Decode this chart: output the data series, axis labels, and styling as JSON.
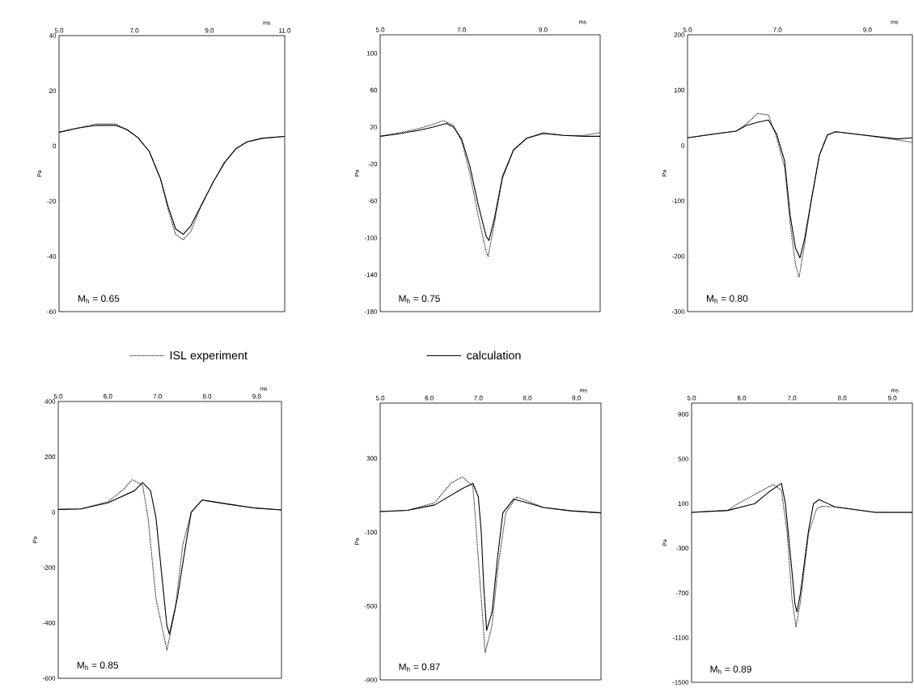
{
  "chart_data": [
    {
      "type": "line",
      "xlabel": "ms",
      "ylabel": "Pa",
      "xlim": [
        5,
        11
      ],
      "ylim": [
        -60,
        40
      ],
      "legend": "bottom",
      "xticks": [
        {
          "value": 5,
          "label": "5.0"
        },
        {
          "value": 7,
          "label": "7.0"
        },
        {
          "value": 9,
          "label": "9.0"
        },
        {
          "value": 11,
          "label": "11.0"
        }
      ],
      "yticks": [
        40,
        20,
        0,
        -20,
        -40,
        -60
      ],
      "annotations": [
        "M$_{h}$ = 0.65"
      ],
      "series": [
        {
          "name": "ISL experiment",
          "color": "#000000",
          "line_style": "dotted",
          "x": [
            5,
            5.5,
            6,
            6.5,
            6.8,
            7.1,
            7.4,
            7.7,
            7.9,
            8.1,
            8.3,
            8.5,
            8.8,
            9.1,
            9.4,
            9.7,
            10,
            10.4,
            11
          ],
          "values": [
            5,
            6.5,
            8,
            8,
            6,
            3,
            -2,
            -12,
            -23,
            -32,
            -34,
            -31,
            -21,
            -13,
            -6,
            -1,
            1.5,
            2.8,
            3.5
          ]
        },
        {
          "name": "calculation",
          "color": "#000000",
          "line_style": "solid",
          "x": [
            5,
            5.5,
            6,
            6.5,
            6.8,
            7.1,
            7.4,
            7.7,
            7.9,
            8.1,
            8.3,
            8.5,
            8.8,
            9.1,
            9.4,
            9.7,
            10,
            10.4,
            11
          ],
          "values": [
            5,
            6.5,
            7.5,
            7.5,
            6,
            3,
            -2,
            -12,
            -22,
            -30,
            -32,
            -29,
            -21,
            -13,
            -6,
            -1,
            1.5,
            2.8,
            3.5
          ]
        }
      ]
    },
    {
      "type": "line",
      "xlabel": "ms",
      "ylabel": "Pa",
      "xlim": [
        5,
        10.4
      ],
      "ylim": [
        -180,
        120
      ],
      "xticks": [
        {
          "value": 5,
          "label": "5.0"
        },
        {
          "value": 7,
          "label": "7.0"
        },
        {
          "value": 9,
          "label": "9.0"
        }
      ],
      "yticks": [
        100,
        60,
        20,
        -20,
        -60,
        -100,
        -140,
        -180
      ],
      "annotations": [
        "M$_{h}$ = 0.75"
      ],
      "series": [
        {
          "color": "#000000",
          "line_style": "dotted",
          "x": [
            5,
            5.5,
            6,
            6.3,
            6.55,
            6.8,
            7.0,
            7.2,
            7.4,
            7.6,
            7.65,
            7.8,
            8.0,
            8.27,
            8.6,
            9.0,
            9.5,
            10,
            10.4
          ],
          "values": [
            10,
            14,
            19,
            23,
            27,
            22,
            5,
            -30,
            -75,
            -115,
            -120,
            -85,
            -36,
            -5,
            8,
            14,
            11,
            11,
            14
          ]
        },
        {
          "color": "#000000",
          "line_style": "solid",
          "x": [
            5,
            5.5,
            6,
            6.3,
            6.63,
            6.8,
            7.0,
            7.2,
            7.4,
            7.6,
            7.67,
            7.8,
            8.0,
            8.27,
            8.6,
            9.0,
            9.5,
            10,
            10.4
          ],
          "values": [
            10,
            13,
            17,
            20,
            24,
            20,
            7,
            -22,
            -63,
            -98,
            -103,
            -80,
            -34,
            -5,
            8,
            13,
            11,
            10,
            10
          ]
        }
      ]
    },
    {
      "type": "line",
      "xlabel": "ms",
      "ylabel": "Pa",
      "xlim": [
        5,
        10
      ],
      "ylim": [
        -300,
        200
      ],
      "xticks": [
        {
          "value": 5,
          "label": "5.0"
        },
        {
          "value": 7,
          "label": "7.0"
        },
        {
          "value": 9,
          "label": "9.0"
        }
      ],
      "yticks": [
        200,
        100,
        0,
        -100,
        -200,
        -300
      ],
      "annotations": [
        "M$_{h}$ = 0.80"
      ],
      "series": [
        {
          "color": "#000000",
          "line_style": "dotted",
          "x": [
            5,
            5.6,
            6.08,
            6.3,
            6.56,
            6.8,
            6.98,
            7.16,
            7.28,
            7.4,
            7.48,
            7.6,
            7.75,
            7.93,
            8.11,
            8.29,
            8.9,
            9.67,
            10
          ],
          "values": [
            14,
            21,
            26,
            38,
            58,
            55,
            15,
            -40,
            -140,
            -215,
            -238,
            -180,
            -100,
            -18,
            19,
            25,
            19,
            10,
            6
          ]
        },
        {
          "color": "#000000",
          "line_style": "solid",
          "x": [
            5,
            5.6,
            6.08,
            6.3,
            6.56,
            6.8,
            6.98,
            7.16,
            7.28,
            7.4,
            7.5,
            7.6,
            7.75,
            7.93,
            8.11,
            8.29,
            8.9,
            9.67,
            10
          ],
          "values": [
            14,
            21,
            26,
            36,
            42,
            46,
            21,
            -28,
            -125,
            -185,
            -203,
            -170,
            -100,
            -18,
            19,
            25,
            19,
            12,
            14
          ]
        }
      ]
    },
    {
      "type": "line",
      "xlabel": "ms",
      "ylabel": "Pa",
      "xlim": [
        5,
        9.5
      ],
      "ylim": [
        -600,
        400
      ],
      "xticks": [
        {
          "value": 5,
          "label": "5.0"
        },
        {
          "value": 6,
          "label": "6.0"
        },
        {
          "value": 7,
          "label": "7.0"
        },
        {
          "value": 8,
          "label": "8.0"
        },
        {
          "value": 9,
          "label": "9.0"
        }
      ],
      "yticks": [
        400,
        200,
        0,
        -200,
        -400,
        -600
      ],
      "annotations": [
        "M$_{h}$ = 0.85"
      ],
      "series": [
        {
          "color": "#000000",
          "line_style": "dotted",
          "x": [
            5,
            5.46,
            6.0,
            6.3,
            6.49,
            6.7,
            6.81,
            6.97,
            7.19,
            7.35,
            7.51,
            7.68,
            7.9,
            8.43,
            8.97,
            9.5
          ],
          "values": [
            10,
            12,
            38,
            80,
            117,
            98,
            -20,
            -312,
            -498,
            -361,
            -117,
            0,
            44,
            29,
            15,
            8
          ]
        },
        {
          "color": "#000000",
          "line_style": "solid",
          "x": [
            5,
            5.46,
            6.0,
            6.54,
            6.7,
            6.86,
            6.97,
            7.08,
            7.19,
            7.24,
            7.4,
            7.57,
            7.68,
            7.9,
            8.43,
            8.97,
            9.5
          ],
          "values": [
            10,
            12,
            34,
            78,
            107,
            78,
            -20,
            -215,
            -410,
            -440,
            -312,
            -117,
            0,
            44,
            29,
            15,
            8
          ]
        }
      ]
    },
    {
      "type": "line",
      "xlabel": "ms",
      "ylabel": "Pa",
      "xlim": [
        5,
        9.5
      ],
      "ylim": [
        -900,
        600
      ],
      "xticks": [
        {
          "value": 5,
          "label": "5.0"
        },
        {
          "value": 6,
          "label": "6.0"
        },
        {
          "value": 7,
          "label": "7.0"
        },
        {
          "value": 8,
          "label": "8.0"
        },
        {
          "value": 9,
          "label": "9.0"
        }
      ],
      "yticks": [
        300,
        -100,
        -500,
        -900
      ],
      "annotations": [
        "M$_{h}$ = 0.87"
      ],
      "series": [
        {
          "color": "#000000",
          "line_style": "dotted",
          "x": [
            5,
            5.56,
            6.11,
            6.44,
            6.67,
            6.89,
            6.94,
            7.06,
            7.14,
            7.28,
            7.39,
            7.56,
            7.78,
            8.33,
            8.89,
            9.5
          ],
          "values": [
            12,
            19,
            60,
            165,
            201,
            150,
            -24,
            -460,
            -751,
            -606,
            -315,
            5,
            92,
            34,
            16,
            5
          ]
        },
        {
          "color": "#000000",
          "line_style": "solid",
          "x": [
            5,
            5.56,
            6.11,
            6.67,
            6.89,
            7.0,
            7.06,
            7.11,
            7.17,
            7.28,
            7.39,
            7.5,
            7.72,
            8.33,
            8.89,
            9.5
          ],
          "values": [
            12,
            19,
            48,
            136,
            165,
            92,
            -97,
            -388,
            -632,
            -533,
            -243,
            5,
            80,
            34,
            16,
            5
          ]
        }
      ]
    },
    {
      "type": "line",
      "xlabel": "ms",
      "ylabel": "Pa",
      "xlim": [
        5,
        9.4
      ],
      "ylim": [
        -1500,
        1000
      ],
      "xticks": [
        {
          "value": 5,
          "label": "5.0"
        },
        {
          "value": 6,
          "label": "6.0"
        },
        {
          "value": 7,
          "label": "7.0"
        },
        {
          "value": 8,
          "label": "8.0"
        },
        {
          "value": 9,
          "label": "9.0"
        }
      ],
      "yticks": [
        900,
        500,
        100,
        -300,
        -700,
        -1100,
        -1500
      ],
      "annotations": [
        "M$_{h}$ = 0.89"
      ],
      "series": [
        {
          "color": "#000000",
          "line_style": "dotted",
          "x": [
            5,
            5.72,
            5.88,
            6.52,
            6.63,
            6.79,
            6.9,
            7.0,
            7.08,
            7.17,
            7.33,
            7.49,
            7.59,
            7.86,
            8.66,
            9.4
          ],
          "values": [
            22,
            39,
            88,
            245,
            270,
            221,
            -142,
            -748,
            -1003,
            -780,
            -170,
            52,
            76,
            71,
            22,
            22
          ]
        },
        {
          "color": "#000000",
          "line_style": "solid",
          "x": [
            5,
            5.72,
            6.26,
            6.52,
            6.79,
            6.87,
            7.0,
            7.06,
            7.1,
            7.17,
            7.33,
            7.43,
            7.54,
            7.86,
            8.66,
            9.4
          ],
          "values": [
            22,
            39,
            100,
            197,
            282,
            100,
            -506,
            -797,
            -870,
            -700,
            -142,
            100,
            136,
            71,
            22,
            22
          ]
        }
      ]
    }
  ]
}
